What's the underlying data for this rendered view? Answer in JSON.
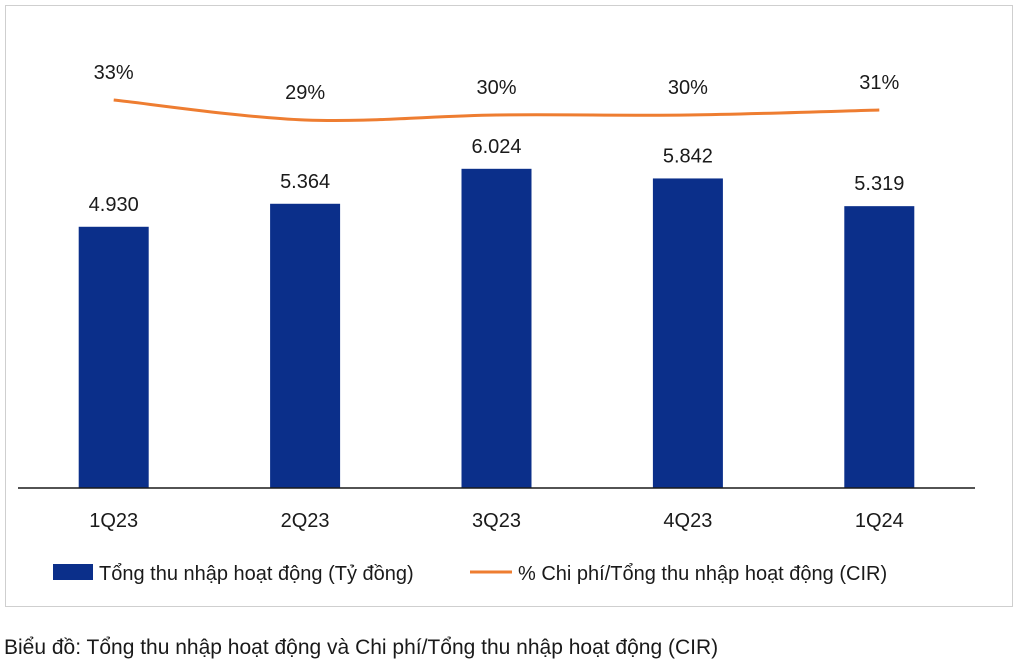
{
  "chart_data": {
    "type": "bar",
    "categories": [
      "1Q23",
      "2Q23",
      "3Q23",
      "4Q23",
      "1Q24"
    ],
    "series": [
      {
        "name": "Tổng thu nhập hoạt động (Tỷ đồng)",
        "type": "bar",
        "values": [
          4930,
          5364,
          6024,
          5842,
          5319
        ],
        "value_labels": [
          "4.930",
          "5.364",
          "6.024",
          "5.842",
          "5.319"
        ],
        "color": "#0b2f8a"
      },
      {
        "name": "% Chi phí/Tổng thu nhập hoạt động (CIR)",
        "type": "line",
        "values": [
          33,
          29,
          30,
          30,
          31
        ],
        "value_labels": [
          "33%",
          "29%",
          "30%",
          "30%",
          "31%"
        ],
        "color": "#ee7d31"
      }
    ],
    "ylim": [
      0,
      7700
    ],
    "grid": false,
    "legend_position": "bottom"
  },
  "caption": "Biểu đồ: Tổng thu nhập hoạt động và Chi phí/Tổng thu nhập hoạt động (CIR)"
}
